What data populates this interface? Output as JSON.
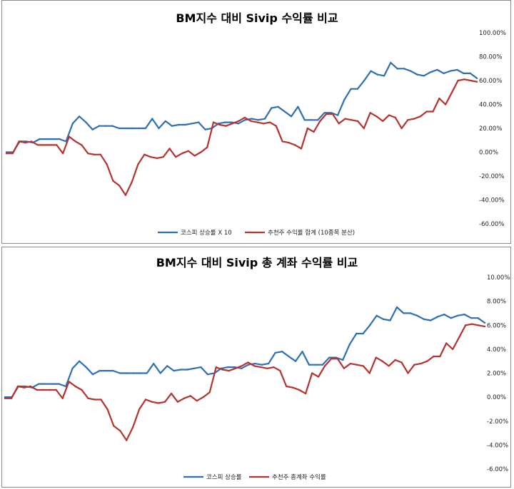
{
  "colors": {
    "blue": "#2e6fb3",
    "red": "#b5322e"
  },
  "chart_data": [
    {
      "type": "line",
      "title": "BM지수 대비 Sivip 수익률 비교",
      "ylim": [
        -0.6,
        1.0
      ],
      "ytick_values": [
        1.0,
        0.8,
        0.6,
        0.4,
        0.2,
        0.0,
        -0.2,
        -0.4,
        -0.6
      ],
      "ytick_labels": [
        "100.00%",
        "80.00%",
        "60.00%",
        "40.00%",
        "20.00%",
        "0.00%",
        "-20.00%",
        "-40.00%",
        "-60.00%"
      ],
      "grid": false,
      "legend": "bottom",
      "series": [
        {
          "name": "코스피 상승률 X 10",
          "color": "#2e6fb3",
          "values": [
            0.0,
            0.0,
            0.09,
            0.09,
            0.08,
            0.11,
            0.11,
            0.11,
            0.11,
            0.09,
            0.24,
            0.3,
            0.25,
            0.19,
            0.22,
            0.22,
            0.22,
            0.2,
            0.2,
            0.2,
            0.2,
            0.2,
            0.28,
            0.2,
            0.26,
            0.22,
            0.23,
            0.23,
            0.24,
            0.25,
            0.19,
            0.2,
            0.24,
            0.25,
            0.25,
            0.24,
            0.27,
            0.28,
            0.27,
            0.28,
            0.37,
            0.38,
            0.34,
            0.3,
            0.38,
            0.27,
            0.27,
            0.27,
            0.33,
            0.33,
            0.31,
            0.44,
            0.53,
            0.53,
            0.6,
            0.68,
            0.65,
            0.64,
            0.75,
            0.7,
            0.7,
            0.68,
            0.65,
            0.64,
            0.67,
            0.69,
            0.66,
            0.68,
            0.69,
            0.66,
            0.66,
            0.62
          ]
        },
        {
          "name": "추천주 수익률 합계 (10종목 분산)",
          "color": "#b5322e",
          "values": [
            -0.01,
            -0.01,
            0.09,
            0.08,
            0.09,
            0.06,
            0.06,
            0.06,
            0.06,
            -0.01,
            0.13,
            0.09,
            0.06,
            -0.01,
            -0.02,
            -0.02,
            -0.1,
            -0.24,
            -0.28,
            -0.36,
            -0.25,
            -0.1,
            -0.02,
            -0.04,
            -0.05,
            -0.04,
            0.03,
            -0.04,
            -0.01,
            0.01,
            -0.03,
            0.0,
            0.04,
            0.25,
            0.23,
            0.22,
            0.24,
            0.26,
            0.29,
            0.26,
            0.25,
            0.24,
            0.25,
            0.22,
            0.09,
            0.08,
            0.06,
            0.03,
            0.2,
            0.17,
            0.26,
            0.32,
            0.32,
            0.24,
            0.28,
            0.27,
            0.26,
            0.2,
            0.33,
            0.3,
            0.26,
            0.31,
            0.29,
            0.2,
            0.27,
            0.28,
            0.3,
            0.34,
            0.34,
            0.45,
            0.4,
            0.5,
            0.6,
            0.61,
            0.6,
            0.59
          ]
        }
      ]
    },
    {
      "type": "line",
      "title": "BM지수 대비 Sivip 총 계좌 수익률 비교",
      "ylim": [
        -0.06,
        0.1
      ],
      "ytick_values": [
        0.1,
        0.08,
        0.06,
        0.04,
        0.02,
        0.0,
        -0.02,
        -0.04,
        -0.06
      ],
      "ytick_labels": [
        "10.00%",
        "8.00%",
        "6.00%",
        "4.00%",
        "2.00%",
        "0.00%",
        "-2.00%",
        "-4.00%",
        "-6.00%"
      ],
      "grid": false,
      "legend": "bottom",
      "series": [
        {
          "name": "코스피 상승률",
          "color": "#2e6fb3",
          "values": [
            0.0,
            0.0,
            0.009,
            0.009,
            0.008,
            0.011,
            0.011,
            0.011,
            0.011,
            0.009,
            0.024,
            0.03,
            0.025,
            0.019,
            0.022,
            0.022,
            0.022,
            0.02,
            0.02,
            0.02,
            0.02,
            0.02,
            0.028,
            0.02,
            0.026,
            0.022,
            0.023,
            0.023,
            0.024,
            0.025,
            0.019,
            0.02,
            0.024,
            0.025,
            0.025,
            0.024,
            0.027,
            0.028,
            0.027,
            0.028,
            0.037,
            0.038,
            0.034,
            0.03,
            0.038,
            0.027,
            0.027,
            0.027,
            0.033,
            0.033,
            0.031,
            0.044,
            0.053,
            0.053,
            0.06,
            0.068,
            0.065,
            0.064,
            0.075,
            0.07,
            0.07,
            0.068,
            0.065,
            0.064,
            0.067,
            0.069,
            0.066,
            0.068,
            0.069,
            0.066,
            0.066,
            0.062
          ]
        },
        {
          "name": "추천주 총계좌 수익률",
          "color": "#b5322e",
          "values": [
            -0.001,
            -0.001,
            0.009,
            0.008,
            0.009,
            0.006,
            0.006,
            0.006,
            0.006,
            -0.001,
            0.013,
            0.009,
            0.006,
            -0.001,
            -0.002,
            -0.002,
            -0.01,
            -0.024,
            -0.028,
            -0.036,
            -0.025,
            -0.01,
            -0.002,
            -0.004,
            -0.005,
            -0.004,
            0.003,
            -0.004,
            -0.001,
            0.001,
            -0.003,
            0.0,
            0.004,
            0.025,
            0.023,
            0.022,
            0.024,
            0.026,
            0.029,
            0.026,
            0.025,
            0.024,
            0.025,
            0.022,
            0.009,
            0.008,
            0.006,
            0.003,
            0.02,
            0.017,
            0.026,
            0.032,
            0.032,
            0.024,
            0.028,
            0.027,
            0.026,
            0.02,
            0.033,
            0.03,
            0.026,
            0.031,
            0.029,
            0.02,
            0.027,
            0.028,
            0.03,
            0.034,
            0.034,
            0.045,
            0.04,
            0.05,
            0.06,
            0.061,
            0.06,
            0.059
          ]
        }
      ]
    }
  ]
}
